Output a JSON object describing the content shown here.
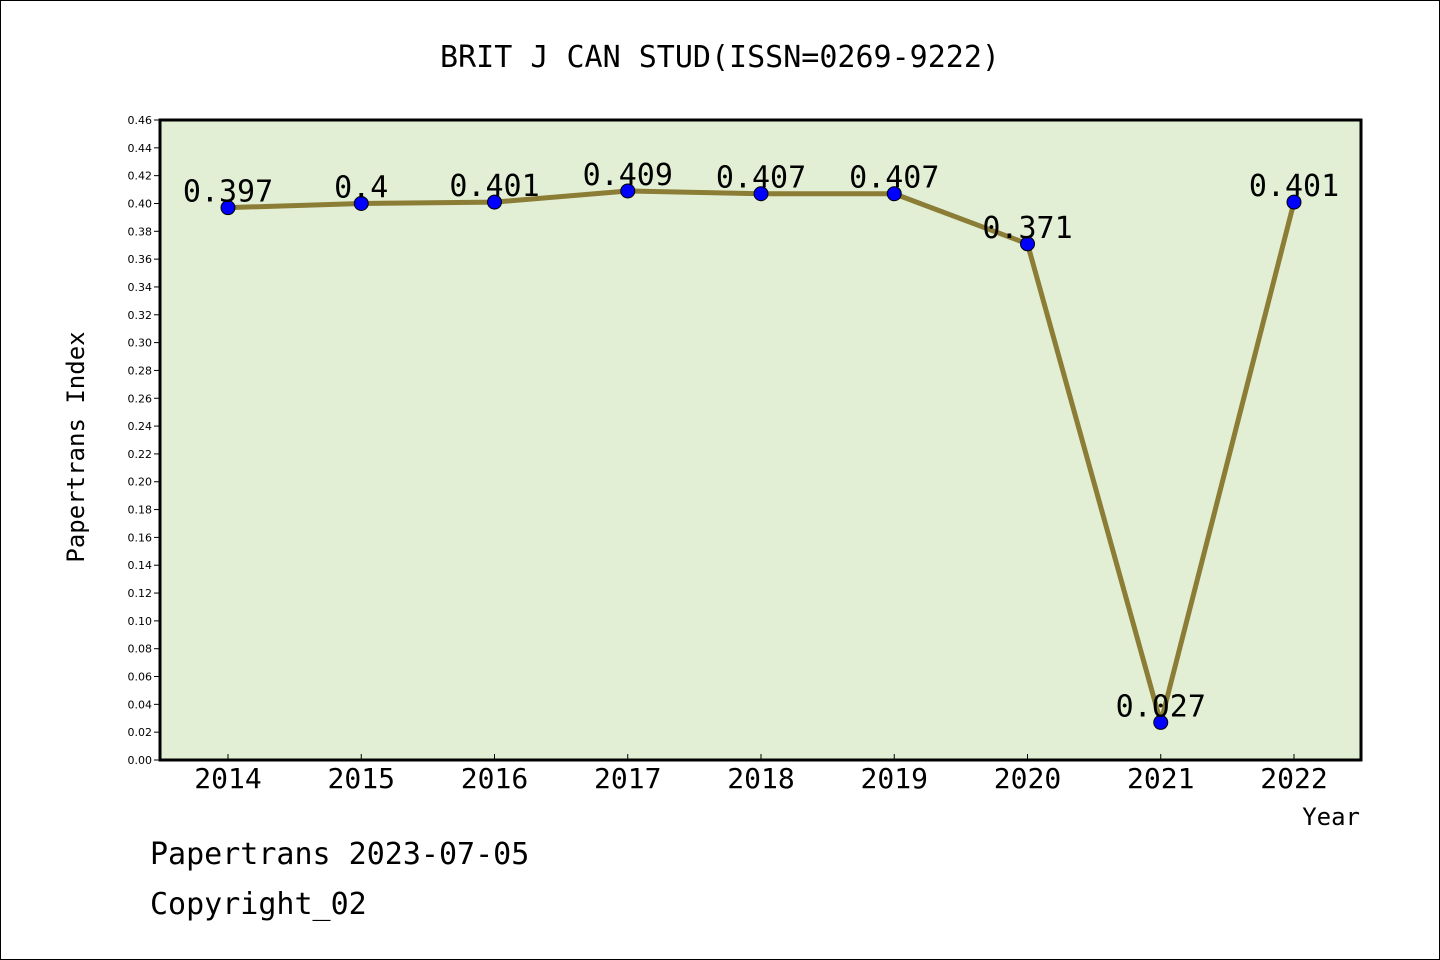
{
  "chart_data": {
    "type": "line",
    "title": "BRIT J CAN STUD(ISSN=0269-9222)",
    "xlabel": "Year",
    "ylabel": "Papertrans Index",
    "categories": [
      "2014",
      "2015",
      "2016",
      "2017",
      "2018",
      "2019",
      "2020",
      "2021",
      "2022"
    ],
    "series": [
      {
        "values": [
          0.397,
          0.4,
          0.401,
          0.409,
          0.407,
          0.407,
          0.371,
          0.027,
          0.401
        ],
        "labels": [
          "0.397",
          "0.4",
          "0.401",
          "0.409",
          "0.407",
          "0.407",
          "0.371",
          "0.027",
          "0.401"
        ]
      }
    ],
    "ylim": [
      0,
      0.46
    ],
    "yticks": [
      "0.00",
      "0.02",
      "0.04",
      "0.06",
      "0.08",
      "0.10",
      "0.12",
      "0.14",
      "0.16",
      "0.18",
      "0.20",
      "0.22",
      "0.24",
      "0.26",
      "0.28",
      "0.30",
      "0.32",
      "0.34",
      "0.36",
      "0.38",
      "0.40",
      "0.42",
      "0.44",
      "0.46"
    ],
    "grid": false,
    "colors": {
      "plot_background": "#e2efd5",
      "line": "#8b7d35",
      "marker": "#0000ff"
    }
  },
  "footer": {
    "line1": "Papertrans 2023-07-05",
    "line2": "Copyright_02"
  }
}
